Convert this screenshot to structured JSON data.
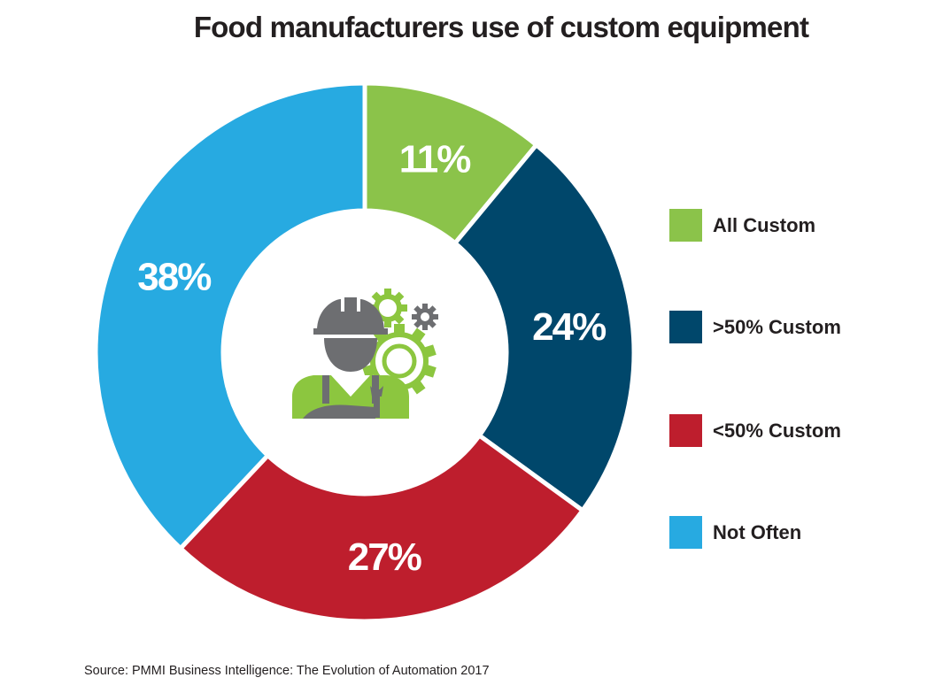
{
  "chart_data": {
    "type": "pie",
    "subtype": "donut",
    "title": "Food manufacturers use of custom equipment",
    "categories": [
      "All Custom",
      ">50% Custom",
      "<50% Custom",
      "Not Often"
    ],
    "values": [
      11,
      24,
      27,
      38
    ],
    "value_labels": [
      "11%",
      "24%",
      "27%",
      "38%"
    ],
    "colors": [
      "#8bc34a",
      "#00476b",
      "#be1e2d",
      "#27aae1"
    ],
    "legend_position": "right",
    "center_icon": "worker-with-gears-icon",
    "source": "Source: PMMI Business Intelligence: The Evolution of Automation 2017"
  },
  "icon_colors": {
    "worker": "#6d6e71",
    "gears": "#8cc63f"
  }
}
